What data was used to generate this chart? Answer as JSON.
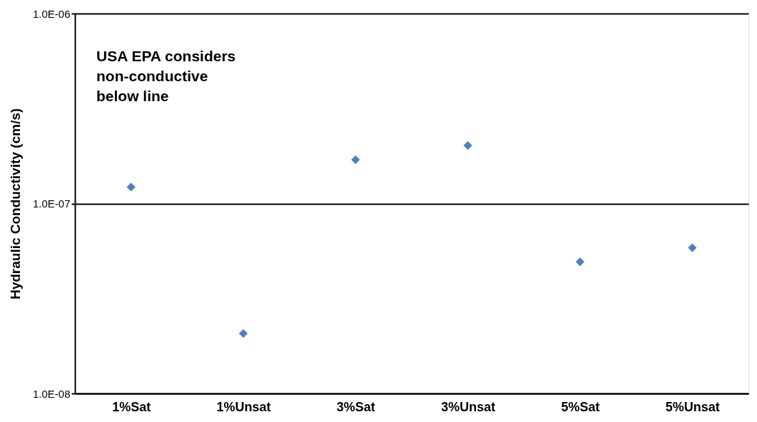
{
  "chart_data": {
    "type": "scatter",
    "ylabel": "Hydraulic Conductivity (cm/s)",
    "categories": [
      "1%Sat",
      "1%Unsat",
      "3%Sat",
      "3%Unsat",
      "5%Sat",
      "5%Unsat"
    ],
    "series": [
      {
        "color": "#4f81bd",
        "values": [
          1.22e-07,
          2.07e-08,
          1.7e-07,
          2.02e-07,
          4.93e-08,
          5.85e-08
        ]
      }
    ],
    "log": "y",
    "ylim": [
      1e-08,
      1e-06
    ],
    "yticks": [
      {
        "value": 1e-08,
        "label": "1.0E-08"
      },
      {
        "value": 1e-07,
        "label": "1.0E-07"
      },
      {
        "value": 1e-06,
        "label": "1.0E-06"
      }
    ],
    "grid": "y",
    "marker": "diamond",
    "annotations": [
      "USA EPA considers non-conductive below line"
    ]
  }
}
